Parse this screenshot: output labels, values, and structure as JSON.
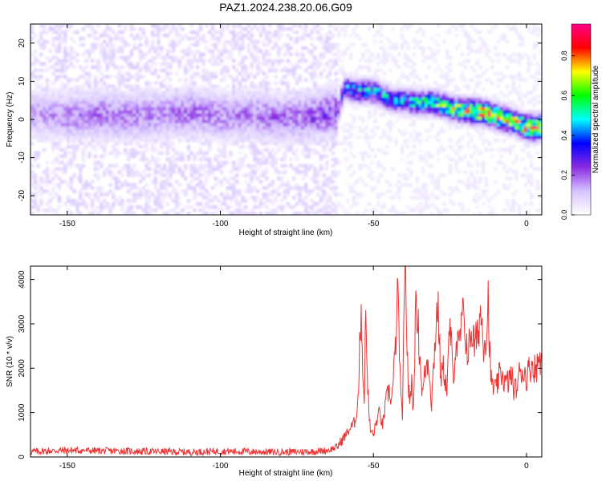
{
  "title": "PAZ1.2024.238.20.06.G09",
  "chart_data": [
    {
      "type": "heatmap",
      "xlabel": "Height of straight line (km)",
      "ylabel": "Frequency (Hz)",
      "xlim": [
        -162,
        5
      ],
      "ylim": [
        -25,
        25
      ],
      "xticks": [
        -150,
        -100,
        -50,
        0
      ],
      "yticks": [
        -20,
        -10,
        0,
        10,
        20
      ],
      "grid": false,
      "colorbar": {
        "label": "Normalized spectral amplitude",
        "range": [
          0,
          0.96
        ],
        "ticks": [
          0.0,
          0.2,
          0.4,
          0.6,
          0.8
        ],
        "colormap": [
          "#ffffff",
          "#d6c2ff",
          "#8a2be2",
          "#0000ff",
          "#00ffff",
          "#00ff00",
          "#ffff00",
          "#ff0000",
          "#ff0088"
        ]
      },
      "trace": {
        "points": [
          {
            "x": -160,
            "f": 1,
            "a": 0.15
          },
          {
            "x": -150,
            "f": 0.5,
            "a": 0.18
          },
          {
            "x": -140,
            "f": 1,
            "a": 0.2
          },
          {
            "x": -130,
            "f": 0.5,
            "a": 0.18
          },
          {
            "x": -120,
            "f": 1,
            "a": 0.18
          },
          {
            "x": -110,
            "f": 1.5,
            "a": 0.2
          },
          {
            "x": -100,
            "f": 0.5,
            "a": 0.18
          },
          {
            "x": -90,
            "f": 1,
            "a": 0.18
          },
          {
            "x": -80,
            "f": 0,
            "a": 0.2
          },
          {
            "x": -70,
            "f": 0.5,
            "a": 0.22
          },
          {
            "x": -62,
            "f": 2,
            "a": 0.25
          },
          {
            "x": -60,
            "f": 8,
            "a": 0.4
          },
          {
            "x": -55,
            "f": 7,
            "a": 0.45
          },
          {
            "x": -50,
            "f": 7,
            "a": 0.45
          },
          {
            "x": -45,
            "f": 5,
            "a": 0.45
          },
          {
            "x": -40,
            "f": 4.5,
            "a": 0.45
          },
          {
            "x": -35,
            "f": 4,
            "a": 0.55
          },
          {
            "x": -30,
            "f": 4,
            "a": 0.6
          },
          {
            "x": -25,
            "f": 2.5,
            "a": 0.65
          },
          {
            "x": -20,
            "f": 2,
            "a": 0.72
          },
          {
            "x": -15,
            "f": 1.5,
            "a": 0.85
          },
          {
            "x": -10,
            "f": 0.5,
            "a": 0.75
          },
          {
            "x": -5,
            "f": -1,
            "a": 0.7
          },
          {
            "x": 0,
            "f": -2.5,
            "a": 0.85
          },
          {
            "x": 5,
            "f": -2.5,
            "a": 0.9
          }
        ]
      }
    },
    {
      "type": "line",
      "xlabel": "Height of straight line (km)",
      "ylabel": "SNR (10 * v/v)",
      "xlim": [
        -162,
        5
      ],
      "ylim": [
        0,
        4300
      ],
      "xticks": [
        -150,
        -100,
        -50,
        0
      ],
      "yticks": [
        0,
        1000,
        2000,
        3000,
        4000
      ],
      "grid": false,
      "series": [
        {
          "color": "#ee3333",
          "x": [
            -162,
            -150,
            -140,
            -130,
            -120,
            -110,
            -100,
            -90,
            -80,
            -70,
            -65,
            -62,
            -60,
            -58,
            -56,
            -55,
            -54,
            -53.5,
            -53,
            -52.5,
            -52,
            -51.5,
            -51,
            -50,
            -49,
            -48,
            -47,
            -46,
            -45,
            -44,
            -43,
            -42,
            -41,
            -40.5,
            -40,
            -39.5,
            -39,
            -38.5,
            -38,
            -37.5,
            -37,
            -36.5,
            -36,
            -35,
            -34,
            -33,
            -32,
            -31,
            -30,
            -29,
            -28,
            -27,
            -26,
            -25,
            -24,
            -23,
            -22,
            -21,
            -20,
            -19,
            -18,
            -17,
            -16,
            -15,
            -14,
            -13,
            -12.5,
            -12,
            -11.5,
            -11,
            -10,
            -9,
            -8,
            -7,
            -6,
            -5,
            -4,
            -3,
            -2,
            -1,
            0,
            1,
            2,
            3,
            4,
            5
          ],
          "values": [
            120,
            150,
            140,
            130,
            120,
            110,
            130,
            120,
            110,
            120,
            150,
            220,
            400,
            600,
            800,
            1300,
            3500,
            2000,
            1200,
            3200,
            2000,
            1000,
            600,
            500,
            800,
            1000,
            700,
            1200,
            1500,
            1300,
            2200,
            3700,
            1200,
            1000,
            3000,
            4300,
            2500,
            1500,
            1200,
            1800,
            1000,
            2400,
            3600,
            2500,
            1400,
            2000,
            2200,
            1200,
            2500,
            3500,
            1800,
            2000,
            1500,
            3000,
            1800,
            2600,
            2400,
            3200,
            2800,
            2300,
            2900,
            2500,
            2700,
            3300,
            2600,
            2800,
            3600,
            2300,
            1700,
            1600,
            1500,
            1800,
            1900,
            1650,
            1700,
            1850,
            1500,
            1600,
            2000,
            1900,
            1800,
            2000,
            2100,
            1950,
            2200,
            2300
          ]
        }
      ]
    }
  ]
}
